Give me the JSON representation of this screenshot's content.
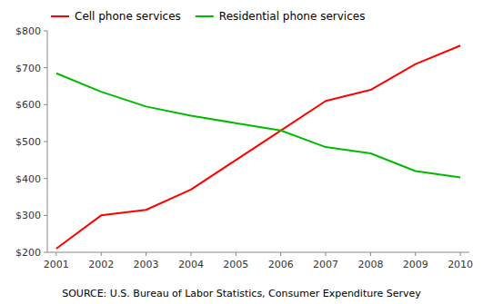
{
  "chart_data": {
    "type": "line",
    "x": [
      2001,
      2002,
      2003,
      2004,
      2005,
      2006,
      2007,
      2008,
      2009,
      2010
    ],
    "series": [
      {
        "name": "Cell phone services",
        "color": "#ff0000",
        "values": [
          210,
          300,
          315,
          370,
          450,
          530,
          610,
          640,
          710,
          760
        ]
      },
      {
        "name": "Residential phone services",
        "color": "#00bb00",
        "values": [
          685,
          635,
          595,
          570,
          550,
          530,
          485,
          468,
          420,
          403
        ]
      }
    ],
    "xlim": [
      2000.8,
      2010.2
    ],
    "xticks": [
      2001,
      2002,
      2003,
      2004,
      2005,
      2006,
      2007,
      2008,
      2009,
      2010
    ],
    "ylim": [
      200,
      800
    ],
    "yticks": [
      {
        "value": 200,
        "label": "$200"
      },
      {
        "value": 300,
        "label": "$300"
      },
      {
        "value": 400,
        "label": "$400"
      },
      {
        "value": 500,
        "label": "$500"
      },
      {
        "value": 600,
        "label": "$600"
      },
      {
        "value": 700,
        "label": "$700"
      },
      {
        "value": 800,
        "label": "$800"
      }
    ],
    "annotations": [
      "SOURCE: U.S. Bureau of Labor Statistics, Consumer Expenditure Servey"
    ],
    "legend": "upper left",
    "grid": false
  }
}
